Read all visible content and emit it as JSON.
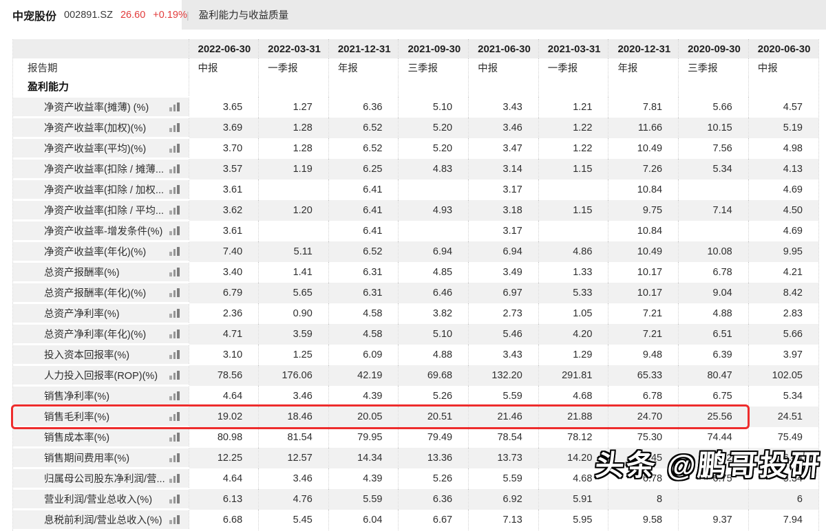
{
  "topbar": {
    "stock_name": "中宠股份",
    "stock_code": "002891.SZ",
    "price": "26.60",
    "change": "+0.19%",
    "divider": "|",
    "page_title": "盈利能力与收益质量"
  },
  "table": {
    "corner_label": "",
    "dates": [
      "2022-06-30",
      "2022-03-31",
      "2021-12-31",
      "2021-09-30",
      "2021-06-30",
      "2021-03-31",
      "2020-12-31",
      "2020-09-30",
      "2020-06-30"
    ],
    "period_row_label": "报告期",
    "period_types": [
      "中报",
      "一季报",
      "年报",
      "三季报",
      "中报",
      "一季报",
      "年报",
      "三季报",
      "中报"
    ],
    "section_header": "盈利能力",
    "rows": [
      {
        "label": "净资产收益率(摊薄) (%)",
        "values": [
          "3.65",
          "1.27",
          "6.36",
          "5.10",
          "3.43",
          "1.21",
          "7.81",
          "5.66",
          "4.57"
        ]
      },
      {
        "label": "净资产收益率(加权)(%)",
        "values": [
          "3.69",
          "1.28",
          "6.52",
          "5.20",
          "3.46",
          "1.22",
          "11.66",
          "10.15",
          "5.19"
        ]
      },
      {
        "label": "净资产收益率(平均)(%)",
        "values": [
          "3.70",
          "1.28",
          "6.52",
          "5.20",
          "3.47",
          "1.22",
          "10.49",
          "7.56",
          "4.98"
        ]
      },
      {
        "label": "净资产收益率(扣除 / 摊薄...",
        "values": [
          "3.57",
          "1.19",
          "6.25",
          "4.83",
          "3.14",
          "1.15",
          "7.26",
          "5.34",
          "4.13"
        ]
      },
      {
        "label": "净资产收益率(扣除 / 加权...",
        "values": [
          "3.61",
          "",
          "6.41",
          "",
          "3.17",
          "",
          "10.84",
          "",
          "4.69"
        ]
      },
      {
        "label": "净资产收益率(扣除 / 平均...",
        "values": [
          "3.62",
          "1.20",
          "6.41",
          "4.93",
          "3.18",
          "1.15",
          "9.75",
          "7.14",
          "4.50"
        ]
      },
      {
        "label": "净资产收益率-增发条件(%)",
        "values": [
          "3.61",
          "",
          "6.41",
          "",
          "3.17",
          "",
          "10.84",
          "",
          "4.69"
        ]
      },
      {
        "label": "净资产收益率(年化)(%)",
        "values": [
          "7.40",
          "5.11",
          "6.52",
          "6.94",
          "6.94",
          "4.86",
          "10.49",
          "10.08",
          "9.95"
        ]
      },
      {
        "label": "总资产报酬率(%)",
        "values": [
          "3.40",
          "1.41",
          "6.31",
          "4.85",
          "3.49",
          "1.33",
          "10.17",
          "6.78",
          "4.21"
        ]
      },
      {
        "label": "总资产报酬率(年化)(%)",
        "values": [
          "6.79",
          "5.65",
          "6.31",
          "6.46",
          "6.97",
          "5.33",
          "10.17",
          "9.04",
          "8.42"
        ]
      },
      {
        "label": "总资产净利率(%)",
        "values": [
          "2.36",
          "0.90",
          "4.58",
          "3.82",
          "2.73",
          "1.05",
          "7.21",
          "4.88",
          "2.83"
        ]
      },
      {
        "label": "总资产净利率(年化)(%)",
        "values": [
          "4.71",
          "3.59",
          "4.58",
          "5.10",
          "5.46",
          "4.20",
          "7.21",
          "6.51",
          "5.66"
        ]
      },
      {
        "label": "投入资本回报率(%)",
        "values": [
          "3.10",
          "1.25",
          "6.09",
          "4.88",
          "3.43",
          "1.29",
          "9.48",
          "6.39",
          "3.97"
        ]
      },
      {
        "label": "人力投入回报率(ROP)(%)",
        "values": [
          "78.56",
          "176.06",
          "42.19",
          "69.68",
          "132.20",
          "291.81",
          "65.33",
          "80.47",
          "102.05"
        ]
      },
      {
        "label": "销售净利率(%)",
        "values": [
          "4.64",
          "3.46",
          "4.39",
          "5.26",
          "5.59",
          "4.68",
          "6.78",
          "6.75",
          "5.34"
        ]
      },
      {
        "label": "销售毛利率(%)",
        "highlight": true,
        "values": [
          "19.02",
          "18.46",
          "20.05",
          "20.51",
          "21.46",
          "21.88",
          "24.70",
          "25.56",
          "24.51"
        ]
      },
      {
        "label": "销售成本率(%)",
        "values": [
          "80.98",
          "81.54",
          "79.95",
          "79.49",
          "78.54",
          "78.12",
          "75.30",
          "74.44",
          "75.49"
        ]
      },
      {
        "label": "销售期间费用率(%)",
        "values": [
          "12.25",
          "12.57",
          "14.34",
          "13.36",
          "13.73",
          "14.20",
          "15.45",
          "16.02",
          "16.44"
        ]
      },
      {
        "label": "归属母公司股东净利润/营...",
        "values": [
          "4.64",
          "3.46",
          "4.39",
          "5.26",
          "5.59",
          "4.68",
          "6.78",
          "6.75",
          "5.34"
        ]
      },
      {
        "label": "营业利润/营业总收入(%)",
        "values": [
          "6.13",
          "4.76",
          "5.59",
          "6.36",
          "6.92",
          "5.91",
          "8",
          "",
          "6"
        ]
      },
      {
        "label": "息税前利润/营业总收入(%)",
        "values": [
          "6.68",
          "5.45",
          "6.04",
          "6.67",
          "7.13",
          "5.95",
          "9.58",
          "9.37",
          "7.94"
        ]
      }
    ]
  },
  "watermark": {
    "text": "头条 @鹏哥投研"
  },
  "colors": {
    "accent_red": "#e23b3b",
    "highlight_border": "#ee2c2c",
    "row_stripe": "#f1f1f1",
    "header_bg": "#ededed",
    "topbar_gray": "#eaeaea"
  }
}
